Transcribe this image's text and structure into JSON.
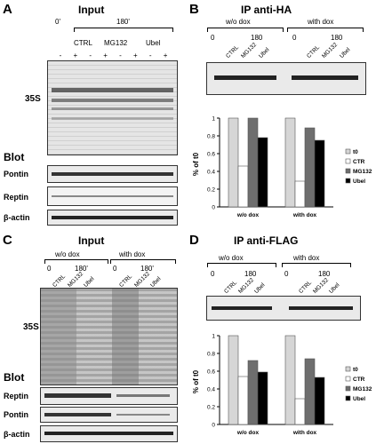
{
  "panelA": {
    "letter": "A",
    "title": "Input",
    "t0": "0'",
    "t180": "180'",
    "conds": [
      "CTRL",
      "MG132",
      "Ubel"
    ],
    "signs": [
      "-",
      "+",
      "-",
      "+",
      "-",
      "+",
      "-",
      "+"
    ],
    "label_35s": "35S",
    "blot_header": "Blot",
    "rows": [
      "Pontin",
      "Reptin",
      "β-actin"
    ]
  },
  "panelB": {
    "letter": "B",
    "title": "IP anti-HA",
    "left_group": "w/o dox",
    "right_group": "with dox",
    "t0": "0",
    "t180": "180",
    "conds": [
      "CTRL",
      "MG132",
      "Ubel"
    ]
  },
  "panelC": {
    "letter": "C",
    "title": "Input",
    "left_group": "w/o dox",
    "right_group": "with dox",
    "t0": "0",
    "t180": "180'",
    "conds": [
      "CTRL",
      "MG132",
      "Ubel"
    ],
    "label_35s": "35S",
    "blot_header": "Blot",
    "rows": [
      "Reptin",
      "Pontin",
      "β-actin"
    ]
  },
  "panelD": {
    "letter": "D",
    "title": "IP anti-FLAG",
    "left_group": "w/o dox",
    "right_group": "with dox",
    "t0": "0",
    "t180": "180",
    "conds": [
      "CTRL",
      "MG132",
      "Ubel"
    ]
  },
  "chart_data": [
    {
      "type": "bar",
      "categories": [
        "w/o dox",
        "with dox"
      ],
      "series": [
        {
          "name": "t0",
          "values": [
            1,
            1
          ]
        },
        {
          "name": "CTR",
          "values": [
            0.46,
            0.29
          ]
        },
        {
          "name": "MG132",
          "values": [
            1,
            0.89
          ]
        },
        {
          "name": "Ubel",
          "values": [
            0.78,
            0.75
          ]
        }
      ],
      "ylabel": "% of t0",
      "ylim": [
        0,
        1
      ],
      "yticks": [
        "0",
        "0.2",
        "0.4",
        "0.6",
        "0.8",
        "1"
      ],
      "colors": [
        "#d6d6d6",
        "#ffffff",
        "#6e6e6e",
        "#000000"
      ],
      "legend": "right"
    },
    {
      "type": "bar",
      "categories": [
        "w/o dox",
        "with dox"
      ],
      "series": [
        {
          "name": "t0",
          "values": [
            1,
            1
          ]
        },
        {
          "name": "CTR",
          "values": [
            0.54,
            0.29
          ]
        },
        {
          "name": "MG132",
          "values": [
            0.72,
            0.74
          ]
        },
        {
          "name": "Ubel",
          "values": [
            0.59,
            0.53
          ]
        }
      ],
      "ylabel": "% of t0",
      "ylim": [
        0,
        1
      ],
      "yticks": [
        "0",
        "0.2",
        "0.4",
        "0.6",
        "0.8",
        "1"
      ],
      "colors": [
        "#d6d6d6",
        "#ffffff",
        "#6e6e6e",
        "#000000"
      ],
      "legend": "right"
    }
  ]
}
